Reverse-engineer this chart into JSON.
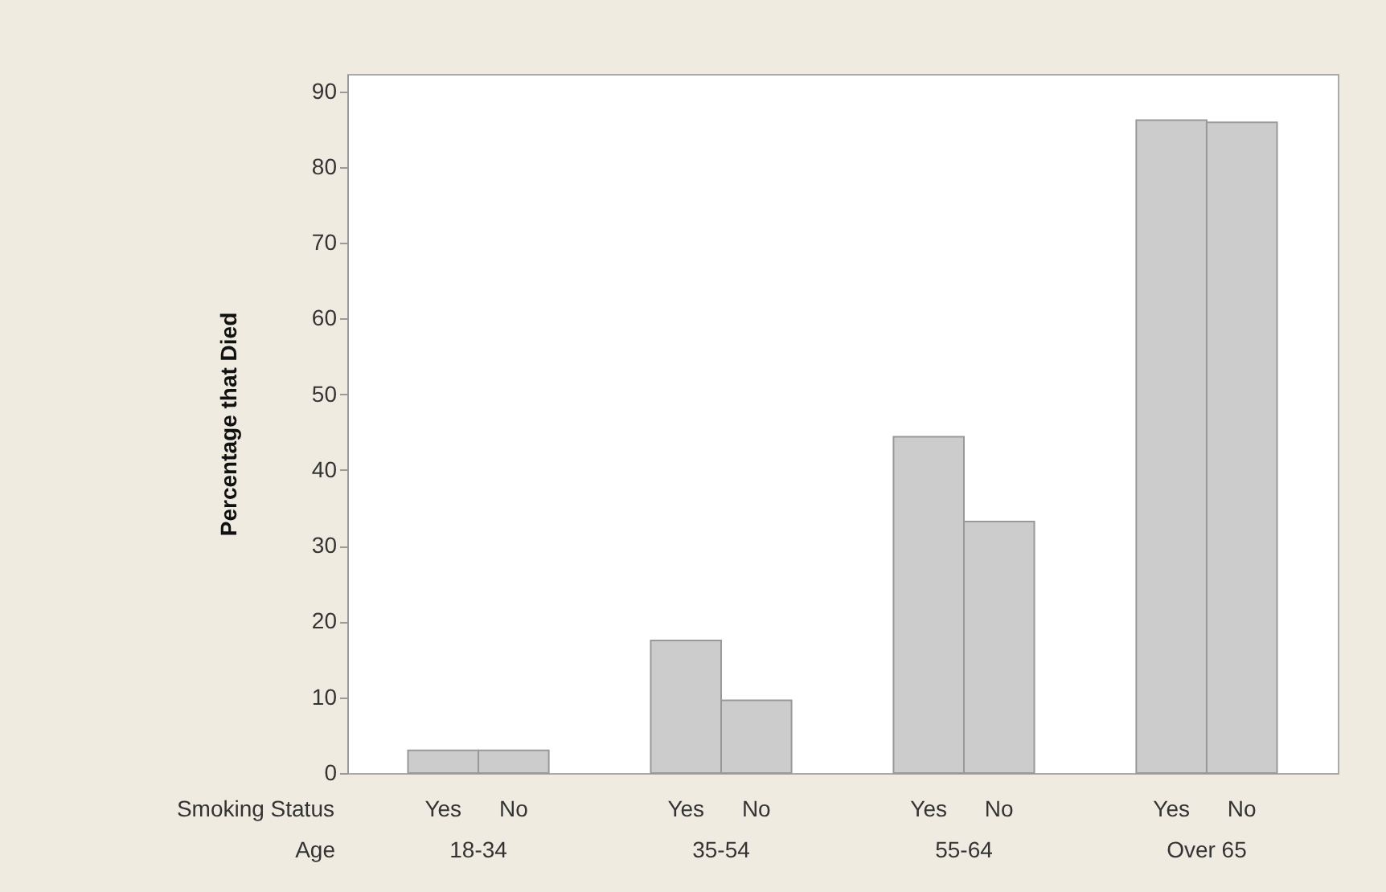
{
  "chart_data": {
    "type": "bar",
    "ylabel": "Percentage that Died",
    "xlabel": "Age",
    "legend_title": "Smoking Status",
    "categories": [
      "18-34",
      "35-54",
      "55-64",
      "Over 65"
    ],
    "series": [
      {
        "name": "Yes",
        "color": "#cccccc",
        "values": [
          3.0,
          17.5,
          44.4,
          86.2
        ]
      },
      {
        "name": "No",
        "color": "#cccccc",
        "values": [
          3.0,
          9.6,
          33.2,
          85.9
        ]
      }
    ],
    "ylim": [
      0,
      92.3
    ],
    "yticks": [
      0,
      10,
      20,
      30,
      40,
      50,
      60,
      70,
      80,
      90
    ]
  }
}
